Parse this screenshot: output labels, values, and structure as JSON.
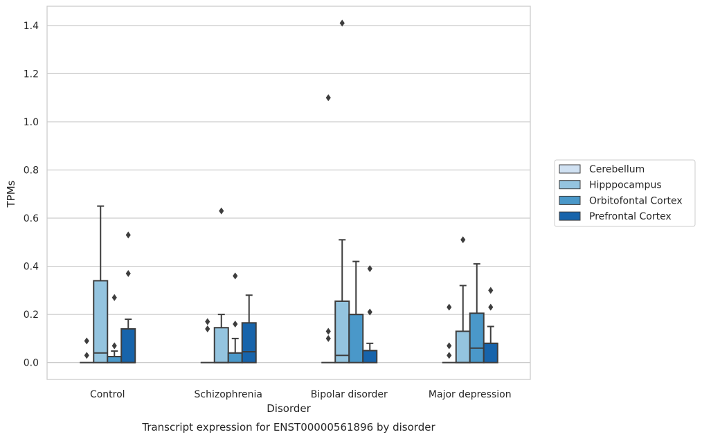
{
  "chart_data": {
    "type": "box",
    "title": "Transcript expression for ENST00000561896 by disorder",
    "xlabel": "Disorder",
    "ylabel": "TPMs",
    "ylim": [
      -0.07,
      1.48
    ],
    "yticks": [
      "0.0",
      "0.2",
      "0.4",
      "0.6",
      "0.8",
      "1.0",
      "1.2",
      "1.4"
    ],
    "categories": [
      "Control",
      "Schizophrenia",
      "Bipolar disorder",
      "Major depression"
    ],
    "grid": "horizontal",
    "legend_position": "right",
    "series": [
      {
        "name": "Cerebellum",
        "color": "#d0e1f2",
        "boxes": [
          {
            "q1": 0,
            "median": 0,
            "q3": 0,
            "whisker_low": 0,
            "whisker_high": 0,
            "outliers": [
              0.03,
              0.09
            ]
          },
          {
            "q1": 0,
            "median": 0,
            "q3": 0,
            "whisker_low": 0,
            "whisker_high": 0,
            "outliers": [
              0.14,
              0.17
            ]
          },
          {
            "q1": 0,
            "median": 0,
            "q3": 0,
            "whisker_low": 0,
            "whisker_high": 0,
            "outliers": [
              0.1,
              0.13,
              1.1
            ]
          },
          {
            "q1": 0,
            "median": 0,
            "q3": 0,
            "whisker_low": 0,
            "whisker_high": 0,
            "outliers": [
              0.03,
              0.07,
              0.23
            ]
          }
        ]
      },
      {
        "name": "Hipppocampus",
        "color": "#94c4df",
        "boxes": [
          {
            "q1": 0,
            "median": 0.04,
            "q3": 0.34,
            "whisker_low": 0,
            "whisker_high": 0.65,
            "outliers": []
          },
          {
            "q1": 0,
            "median": 0,
            "q3": 0.145,
            "whisker_low": 0,
            "whisker_high": 0.2,
            "outliers": [
              0.63
            ]
          },
          {
            "q1": 0,
            "median": 0.03,
            "q3": 0.255,
            "whisker_low": 0,
            "whisker_high": 0.51,
            "outliers": [
              1.41
            ]
          },
          {
            "q1": 0,
            "median": 0,
            "q3": 0.13,
            "whisker_low": 0,
            "whisker_high": 0.32,
            "outliers": [
              0.51
            ]
          }
        ]
      },
      {
        "name": "Orbitofontal Cortex",
        "color": "#4a98c9",
        "boxes": [
          {
            "q1": 0,
            "median": 0.025,
            "q3": 0.025,
            "whisker_low": 0,
            "whisker_high": 0.048,
            "outliers": [
              0.07,
              0.27
            ]
          },
          {
            "q1": 0,
            "median": 0.04,
            "q3": 0.04,
            "whisker_low": 0,
            "whisker_high": 0.1,
            "outliers": [
              0.16,
              0.36
            ]
          },
          {
            "q1": 0,
            "median": 0.2,
            "q3": 0.2,
            "whisker_low": 0,
            "whisker_high": 0.42,
            "outliers": []
          },
          {
            "q1": 0,
            "median": 0.06,
            "q3": 0.205,
            "whisker_low": 0,
            "whisker_high": 0.41,
            "outliers": []
          }
        ]
      },
      {
        "name": "Prefrontal Cortex",
        "color": "#1764ab",
        "boxes": [
          {
            "q1": 0,
            "median": 0,
            "q3": 0.14,
            "whisker_low": 0,
            "whisker_high": 0.18,
            "outliers": [
              0.37,
              0.53
            ]
          },
          {
            "q1": 0,
            "median": 0.045,
            "q3": 0.165,
            "whisker_low": 0,
            "whisker_high": 0.28,
            "outliers": []
          },
          {
            "q1": 0,
            "median": 0.05,
            "q3": 0.05,
            "whisker_low": 0,
            "whisker_high": 0.08,
            "outliers": [
              0.21,
              0.39
            ]
          },
          {
            "q1": 0,
            "median": 0.08,
            "q3": 0.08,
            "whisker_low": 0,
            "whisker_high": 0.15,
            "outliers": [
              0.23,
              0.3
            ]
          }
        ]
      }
    ]
  }
}
